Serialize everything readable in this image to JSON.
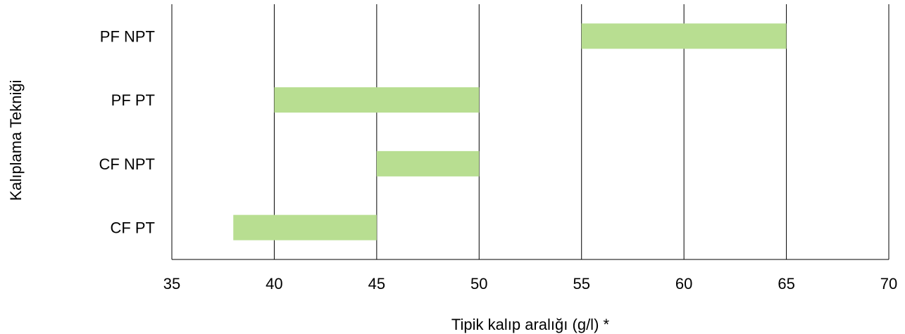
{
  "chart_data": {
    "type": "bar",
    "orientation": "horizontal",
    "subtype": "range",
    "title": "",
    "xlabel": "Tipik kalıp aralığı (g/l) *",
    "ylabel": "Kalıplama Tekniği",
    "categories": [
      "PF NPT",
      "PF PT",
      "CF NPT",
      "CF PT"
    ],
    "ranges": [
      {
        "category": "PF NPT",
        "start": 55,
        "end": 65
      },
      {
        "category": "PF PT",
        "start": 40,
        "end": 50
      },
      {
        "category": "CF NPT",
        "start": 45,
        "end": 50
      },
      {
        "category": "CF PT",
        "start": 38,
        "end": 45
      }
    ],
    "xlim": [
      35,
      70
    ],
    "xticks": [
      "35",
      "40",
      "45",
      "50",
      "55",
      "60",
      "65",
      "70"
    ],
    "grid": {
      "vertical": true,
      "horizontal": false
    },
    "legend": "none",
    "colors": {
      "bar": "#b8de91",
      "grid": "#000000",
      "text": "#000000"
    }
  }
}
